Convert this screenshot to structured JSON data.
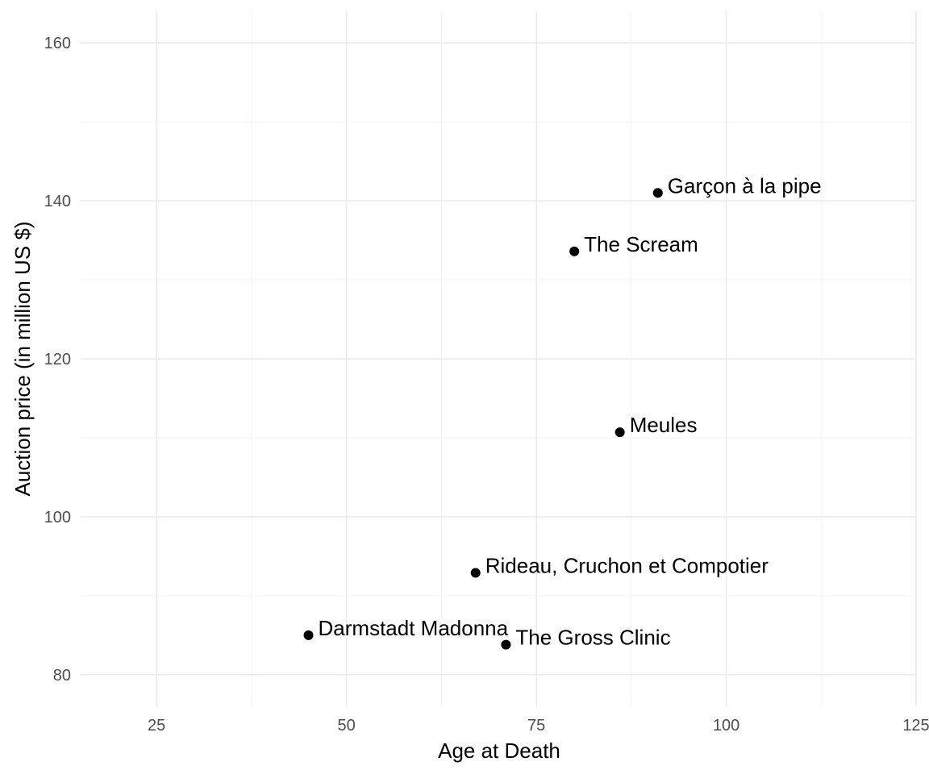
{
  "chart_data": {
    "type": "scatter",
    "title": "",
    "xlabel": "Age at Death",
    "ylabel": "Auction price (in million US $)",
    "xlim": [
      15,
      125
    ],
    "ylim": [
      76,
      164
    ],
    "x_ticks": [
      25,
      50,
      75,
      100,
      125
    ],
    "y_ticks": [
      80,
      100,
      120,
      140,
      160
    ],
    "x_tick_labels": [
      "25",
      "50",
      "75",
      "100",
      "125"
    ],
    "y_tick_labels": [
      "80",
      "100",
      "120",
      "140",
      "160"
    ],
    "grid": true,
    "legend": "none",
    "point_color": "#000000",
    "points": [
      {
        "label": "Garçon à la pipe",
        "x": 91,
        "y": 141
      },
      {
        "label": "The Scream",
        "x": 80,
        "y": 133.6
      },
      {
        "label": "Meules",
        "x": 86,
        "y": 110.7
      },
      {
        "label": "Rideau, Cruchon et Compotier",
        "x": 67,
        "y": 92.9
      },
      {
        "label": "Darmstadt Madonna",
        "x": 45,
        "y": 85
      },
      {
        "label": "The Gross Clinic",
        "x": 71,
        "y": 83.8
      }
    ]
  }
}
